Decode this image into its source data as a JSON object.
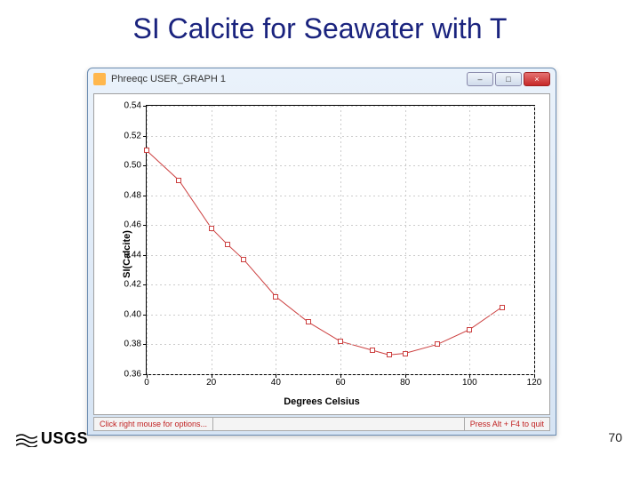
{
  "slide": {
    "title": "SI Calcite for Seawater with T",
    "title_color": "#1a237e",
    "page_number": "70",
    "logo_text": "USGS"
  },
  "window": {
    "title": "Phreeqc USER_GRAPH 1",
    "min_label": "–",
    "max_label": "□",
    "close_label": "×",
    "status_left": "Click right mouse for options...",
    "status_right": "Press Alt + F4 to quit"
  },
  "chart": {
    "type": "line",
    "xlabel": "Degrees Celsius",
    "ylabel": "SI(Calcite)",
    "xlim": [
      0,
      120
    ],
    "ylim": [
      0.36,
      0.54
    ],
    "xtick_step": 20,
    "ytick_step": 0.02,
    "xticks": [
      0,
      20,
      40,
      60,
      80,
      100,
      120
    ],
    "yticks": [
      0.36,
      0.38,
      0.4,
      0.42,
      0.44,
      0.46,
      0.48,
      0.5,
      0.52,
      0.54
    ],
    "grid_color": "#cccccc",
    "background_color": "#ffffff",
    "line_color": "#cc4040",
    "marker_color": "#cc4040",
    "marker_fill": "#ffffff",
    "marker_style": "square",
    "marker_size": 6,
    "line_width": 1,
    "label_fontsize": 11,
    "tick_fontsize": 10,
    "x": [
      0,
      10,
      20,
      25,
      30,
      40,
      50,
      60,
      70,
      75,
      80,
      90,
      100,
      110
    ],
    "y": [
      0.51,
      0.49,
      0.458,
      0.447,
      0.437,
      0.412,
      0.395,
      0.382,
      0.376,
      0.373,
      0.374,
      0.38,
      0.39,
      0.405
    ]
  }
}
